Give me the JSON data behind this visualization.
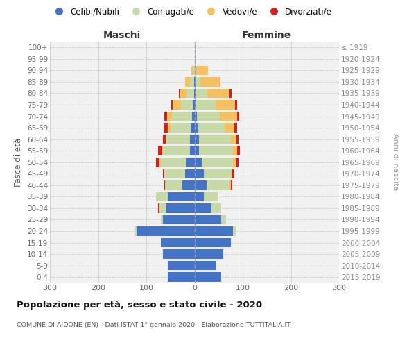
{
  "age_groups": [
    "0-4",
    "5-9",
    "10-14",
    "15-19",
    "20-24",
    "25-29",
    "30-34",
    "35-39",
    "40-44",
    "45-49",
    "50-54",
    "55-59",
    "60-64",
    "65-69",
    "70-74",
    "75-79",
    "80-84",
    "85-89",
    "90-94",
    "95-99",
    "100+"
  ],
  "birth_years": [
    "2015-2019",
    "2010-2014",
    "2005-2009",
    "2000-2004",
    "1995-1999",
    "1990-1994",
    "1985-1989",
    "1980-1984",
    "1975-1979",
    "1970-1974",
    "1965-1969",
    "1960-1964",
    "1955-1959",
    "1950-1954",
    "1945-1949",
    "1940-1944",
    "1935-1939",
    "1930-1934",
    "1925-1929",
    "1920-1924",
    "≤ 1919"
  ],
  "maschi_celibi": [
    55,
    55,
    65,
    70,
    120,
    65,
    58,
    55,
    25,
    20,
    18,
    10,
    10,
    8,
    5,
    3,
    1,
    1,
    0,
    0,
    0
  ],
  "maschi_coniugati": [
    0,
    0,
    0,
    0,
    5,
    5,
    15,
    25,
    35,
    42,
    52,
    55,
    48,
    42,
    42,
    25,
    15,
    8,
    2,
    0,
    0
  ],
  "maschi_vedovi": [
    0,
    0,
    0,
    0,
    0,
    0,
    0,
    0,
    1,
    1,
    2,
    2,
    2,
    6,
    10,
    18,
    15,
    10,
    4,
    0,
    0
  ],
  "maschi_divorziati": [
    0,
    0,
    0,
    0,
    0,
    0,
    2,
    0,
    2,
    3,
    8,
    8,
    5,
    8,
    6,
    2,
    2,
    1,
    0,
    0,
    0
  ],
  "femmine_nubili": [
    55,
    45,
    60,
    75,
    80,
    55,
    35,
    20,
    25,
    20,
    15,
    10,
    10,
    8,
    5,
    2,
    2,
    2,
    0,
    0,
    0
  ],
  "femmine_coniugate": [
    0,
    0,
    0,
    0,
    5,
    10,
    20,
    28,
    48,
    55,
    65,
    70,
    65,
    55,
    48,
    42,
    25,
    10,
    3,
    0,
    0
  ],
  "femmine_vedove": [
    0,
    0,
    0,
    0,
    0,
    0,
    0,
    0,
    2,
    3,
    6,
    8,
    12,
    20,
    35,
    40,
    45,
    40,
    25,
    2,
    0
  ],
  "femmine_divorziate": [
    0,
    0,
    0,
    0,
    0,
    0,
    0,
    0,
    3,
    5,
    5,
    6,
    5,
    5,
    5,
    5,
    5,
    2,
    0,
    0,
    0
  ],
  "color_celibi": "#4472c4",
  "color_coniugati": "#c8d9a8",
  "color_vedovi": "#f5c060",
  "color_divorziati": "#cc2222",
  "xlim": 300,
  "bg_color": "#f0f0f0",
  "title": "Popolazione per età, sesso e stato civile - 2020",
  "subtitle": "COMUNE DI AIDONE (EN) - Dati ISTAT 1° gennaio 2020 - Elaborazione TUTTITALIA.IT",
  "ylabel_left": "Fasce di età",
  "ylabel_right": "Anni di nascita",
  "label_maschi": "Maschi",
  "label_femmine": "Femmine",
  "legend_labels": [
    "Celibi/Nubili",
    "Coniugati/e",
    "Vedovi/e",
    "Divorziati/e"
  ]
}
